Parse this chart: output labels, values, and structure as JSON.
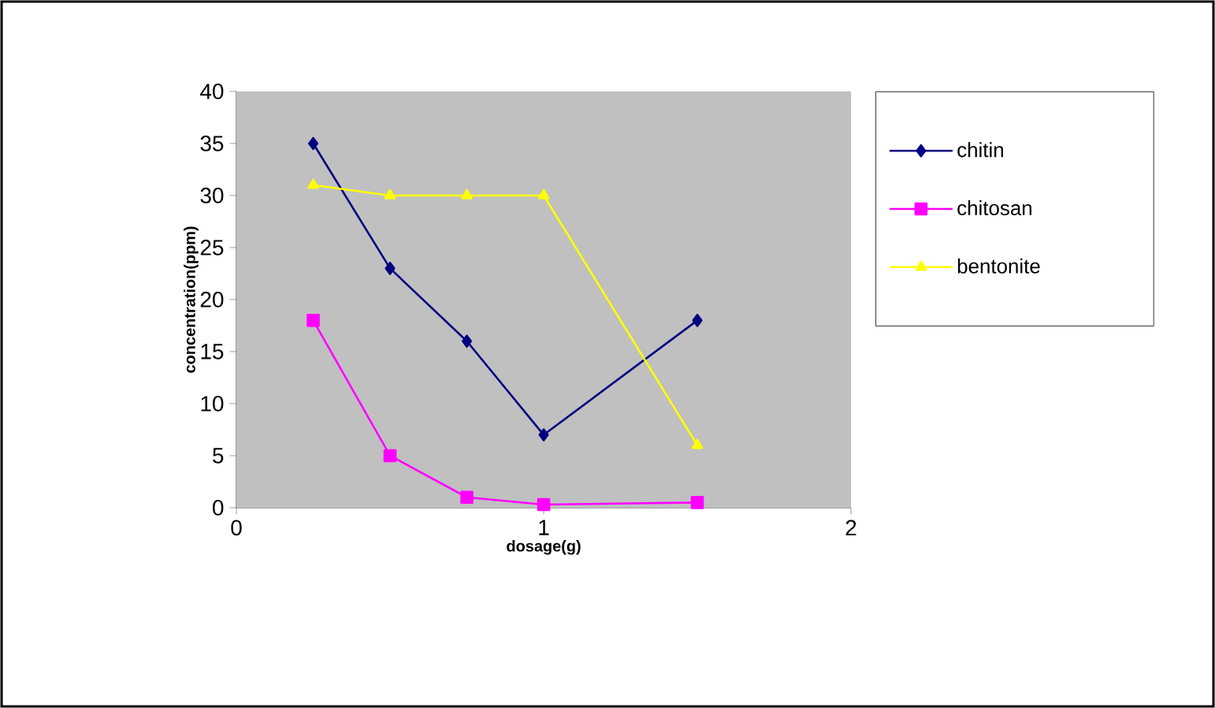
{
  "chart_data": {
    "type": "line",
    "xlabel": "dosage(g)",
    "ylabel": "concentration(ppm)",
    "xlim": [
      0,
      2
    ],
    "ylim": [
      0,
      40
    ],
    "xticks": [
      0,
      1,
      2
    ],
    "yticks": [
      0,
      5,
      10,
      15,
      20,
      25,
      30,
      35,
      40
    ],
    "x": [
      0.25,
      0.5,
      0.75,
      1,
      1.5
    ],
    "grid": false,
    "legend": "right",
    "series": [
      {
        "name": "chitin",
        "color": "#000080",
        "marker": "diamond",
        "values": [
          35,
          23,
          16,
          7,
          18
        ]
      },
      {
        "name": "chitosan",
        "color": "#ff00ff",
        "marker": "square",
        "values": [
          18,
          5,
          1,
          0.3,
          0.5
        ]
      },
      {
        "name": "bentonite",
        "color": "#ffff00",
        "marker": "triangle",
        "values": [
          31,
          30,
          30,
          30,
          6
        ]
      }
    ]
  }
}
